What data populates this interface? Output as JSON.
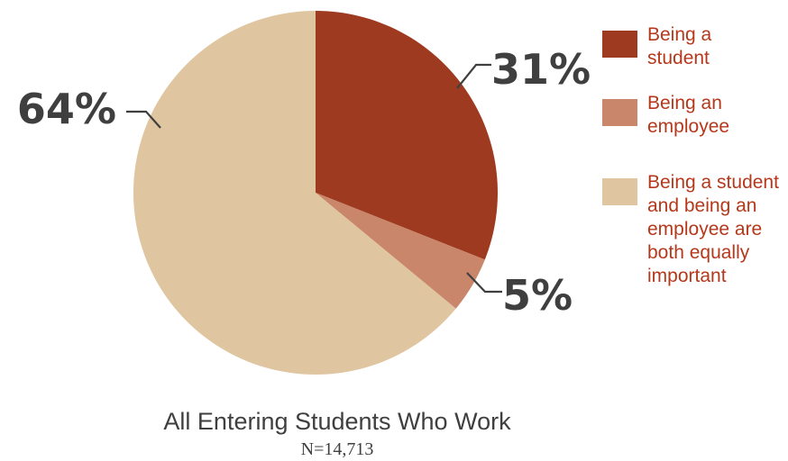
{
  "chart_data": {
    "type": "pie",
    "title": "All Entering Students Who Work",
    "subtitle": "N=14,713",
    "legend_position": "right",
    "slices": [
      {
        "label": "Being a student",
        "legend_lines": [
          "Being a",
          "student"
        ],
        "value": 31,
        "display": "31%",
        "color": "#9e3a1f"
      },
      {
        "label": "Being an employee",
        "legend_lines": [
          "Being an",
          "employee"
        ],
        "value": 5,
        "display": "5%",
        "color": "#c9866a"
      },
      {
        "label": "Being a student and being an employee are both equally important",
        "legend_lines": [
          "Being a student",
          "and being an",
          "employee are",
          "both equally",
          "important"
        ],
        "value": 64,
        "display": "64%",
        "color": "#dfc5a0"
      }
    ]
  }
}
